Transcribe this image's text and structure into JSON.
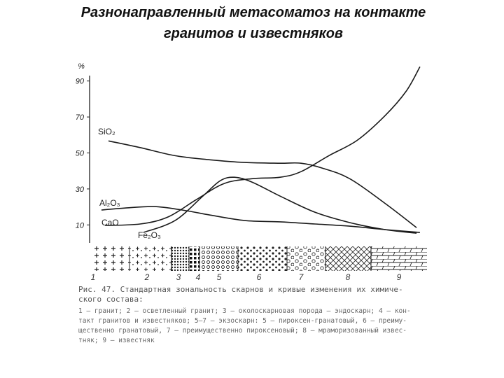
{
  "title": [
    "Разнонаправленный метасоматоз на контакте",
    "гранитов и известняков"
  ],
  "chart_data": {
    "type": "line",
    "y_label": "%",
    "xlim": [
      0,
      100
    ],
    "ylim": [
      0,
      93
    ],
    "yticks": [
      10,
      30,
      50,
      70,
      90
    ],
    "color": "#1a1a1a",
    "series": [
      {
        "name": "SiO₂",
        "x": [
          5.2,
          14.6,
          25,
          35.4,
          45.8,
          56.3,
          62.5,
          68.8,
          77,
          87.5,
          96.9
        ],
        "values": [
          56.7,
          53,
          48.5,
          46.2,
          44.7,
          44.3,
          44.3,
          41.6,
          35.7,
          22,
          8.5
        ]
      },
      {
        "name": "Al₂O₃",
        "x": [
          3.1,
          10.4,
          18.8,
          27.1,
          35.4,
          45.8,
          56.3,
          66.7,
          77,
          87.5,
          97.9
        ],
        "values": [
          18.3,
          19.4,
          20.2,
          18.3,
          15.5,
          12.4,
          11.7,
          10.5,
          9.3,
          7.4,
          5.8
        ]
      },
      {
        "name": "CaO",
        "x": [
          4.2,
          14.6,
          22.9,
          31.3,
          39.6,
          47.9,
          56.3,
          62.5,
          70.8,
          79.2,
          87.5,
          93.8,
          97.9
        ],
        "values": [
          9.7,
          10.5,
          14.4,
          24,
          33,
          35.7,
          36.5,
          39.6,
          48.5,
          57,
          70.7,
          84.3,
          97.9
        ]
      },
      {
        "name": "Fe₂O₃",
        "x": [
          15.6,
          25,
          33.3,
          38.5,
          42.7,
          47.9,
          56.3,
          66.7,
          77,
          87.5,
          96.9
        ],
        "values": [
          5.8,
          12.4,
          26,
          34.6,
          36.5,
          33.8,
          26,
          17,
          11.3,
          7.4,
          5.4
        ]
      }
    ],
    "zones": [
      "1",
      "2",
      "3",
      "4",
      "5",
      "6",
      "7",
      "8",
      "9"
    ]
  },
  "caption": [
    "Рис. 47. Стандартная зональность скарнов и кривые изменения их химиче-",
    "ского состава:",
    "1 — гранит; 2 — осветленный гранит; 3 — околоскарновая порода — эндоскарн; 4 — кон-",
    "такт гранитов и известняков; 5—7 — экзоскарн: 5 — пироксен-гранатовый, 6 — преиму-",
    "щественно гранатовый, 7 — преимущественно пироксеновый; 8 — мраморизованный извес-",
    "тняк; 9 — известняк"
  ]
}
